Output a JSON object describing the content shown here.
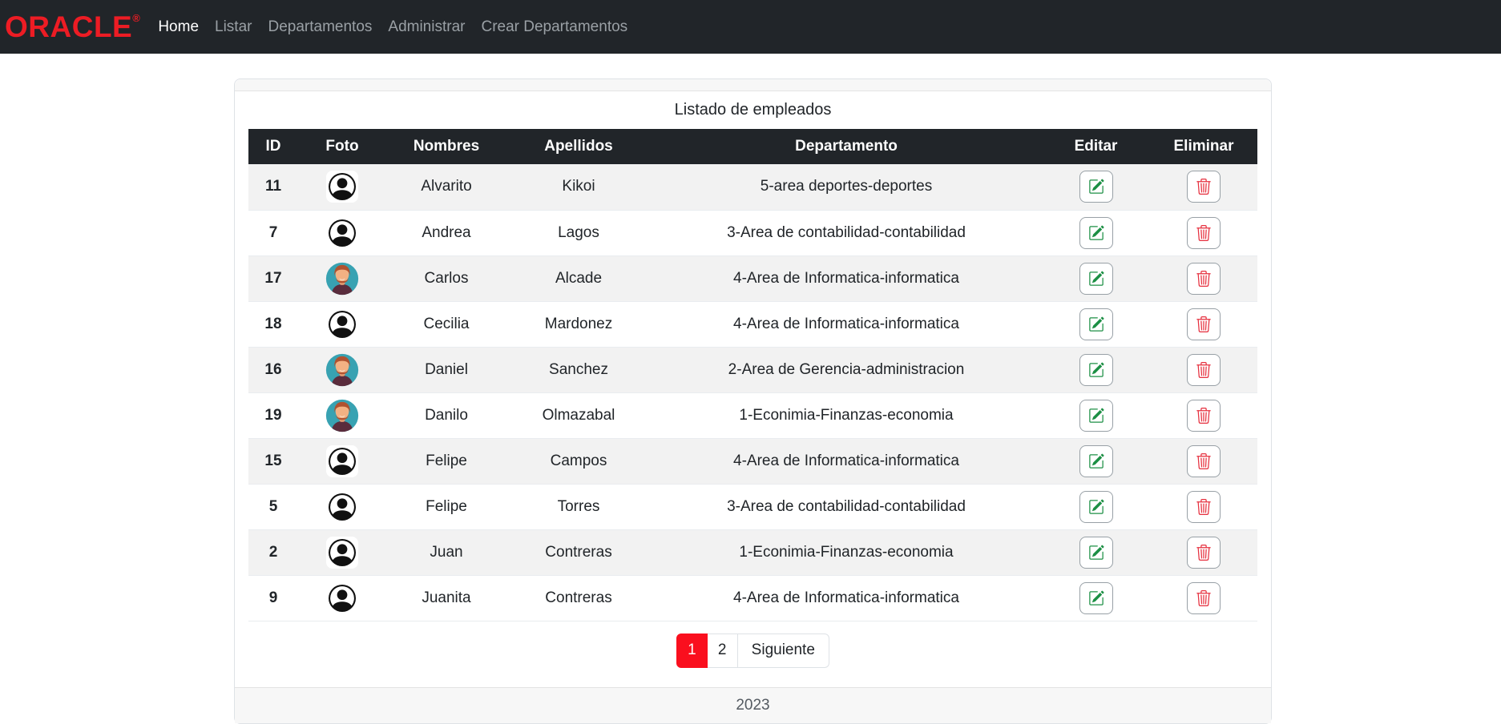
{
  "navbar": {
    "brand": "ORACLE",
    "brand_reg": "®",
    "items": [
      {
        "label": "Home",
        "active": true
      },
      {
        "label": "Listar",
        "active": false
      },
      {
        "label": "Departamentos",
        "active": false
      },
      {
        "label": "Administrar",
        "active": false
      },
      {
        "label": "Crear Departamentos",
        "active": false
      }
    ]
  },
  "card": {
    "title": "Listado de empleados",
    "table": {
      "headers": [
        "ID",
        "Foto",
        "Nombres",
        "Apellidos",
        "Departamento",
        "Editar",
        "Eliminar"
      ],
      "rows": [
        {
          "id": "11",
          "foto": "default-avatar",
          "nombres": "Alvarito",
          "apellidos": "Kikoi",
          "departamento": "5-area deportes-deportes"
        },
        {
          "id": "7",
          "foto": "default-avatar",
          "nombres": "Andrea",
          "apellidos": "Lagos",
          "departamento": "3-Area de contabilidad-contabilidad"
        },
        {
          "id": "17",
          "foto": "photo-avatar",
          "nombres": "Carlos",
          "apellidos": "Alcade",
          "departamento": "4-Area de Informatica-informatica"
        },
        {
          "id": "18",
          "foto": "default-avatar",
          "nombres": "Cecilia",
          "apellidos": "Mardonez",
          "departamento": "4-Area de Informatica-informatica"
        },
        {
          "id": "16",
          "foto": "photo-avatar",
          "nombres": "Daniel",
          "apellidos": "Sanchez",
          "departamento": "2-Area de Gerencia-administracion"
        },
        {
          "id": "19",
          "foto": "photo-avatar",
          "nombres": "Danilo",
          "apellidos": "Olmazabal",
          "departamento": "1-Econimia-Finanzas-economia"
        },
        {
          "id": "15",
          "foto": "default-avatar",
          "nombres": "Felipe",
          "apellidos": "Campos",
          "departamento": "4-Area de Informatica-informatica"
        },
        {
          "id": "5",
          "foto": "default-avatar",
          "nombres": "Felipe",
          "apellidos": "Torres",
          "departamento": "3-Area de contabilidad-contabilidad"
        },
        {
          "id": "2",
          "foto": "default-avatar",
          "nombres": "Juan",
          "apellidos": "Contreras",
          "departamento": "1-Econimia-Finanzas-economia"
        },
        {
          "id": "9",
          "foto": "default-avatar",
          "nombres": "Juanita",
          "apellidos": "Contreras",
          "departamento": "4-Area de Informatica-informatica"
        }
      ]
    },
    "pagination": {
      "pages": [
        {
          "label": "1",
          "active": true
        },
        {
          "label": "2",
          "active": false
        }
      ],
      "next_label": "Siguiente"
    },
    "footer_text": "2023"
  },
  "icons": {
    "edit": "pencil-square-icon",
    "delete": "trash-icon",
    "default_avatar": "person-circle-icon"
  },
  "colors": {
    "navbar_bg": "#212529",
    "brand_red": "#ed1c24",
    "table_header_bg": "#212529",
    "row_stripe": "#f2f2f2",
    "pagination_active_red": "#fa0f1e",
    "edit_green": "#1c8f44",
    "delete_red": "#e6303f",
    "card_strip_gray": "#f7f7f7"
  }
}
